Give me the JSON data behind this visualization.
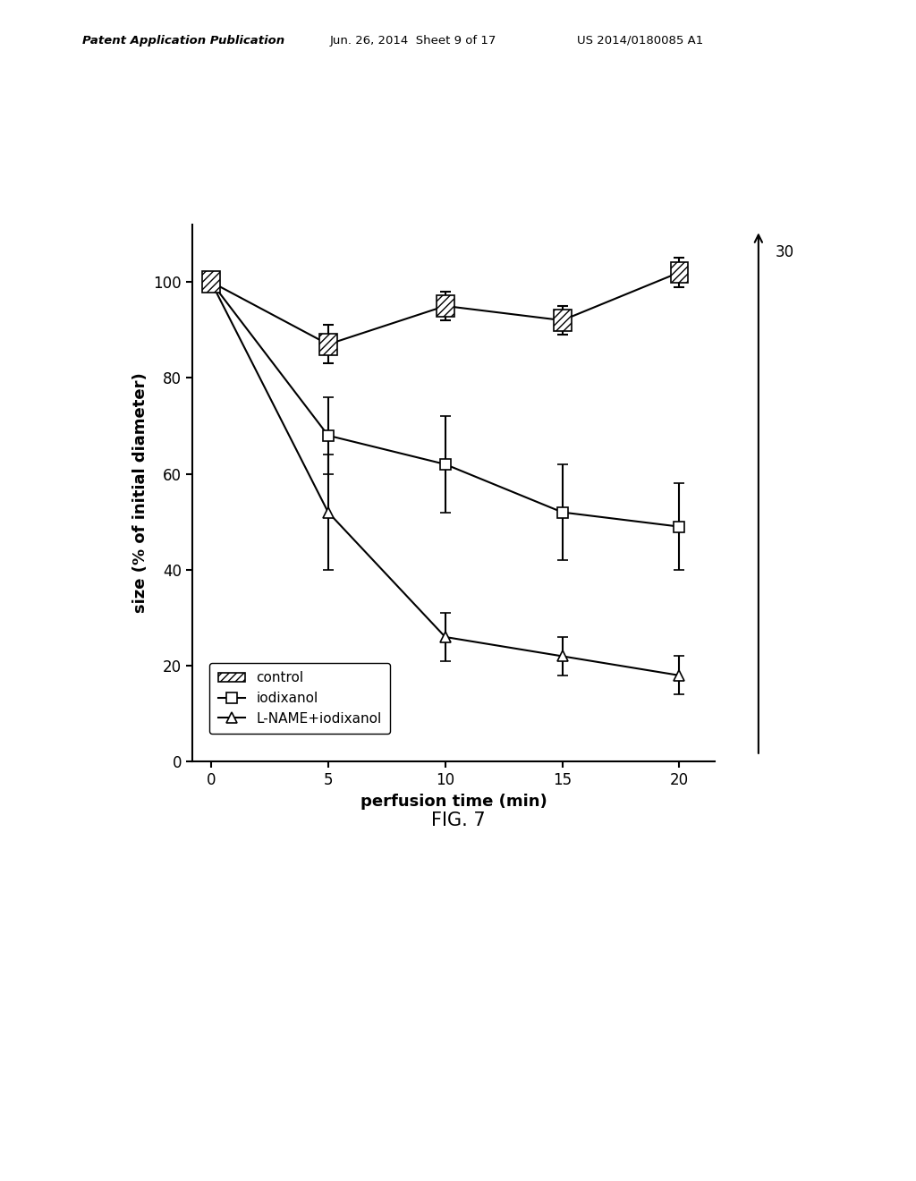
{
  "x": [
    0,
    5,
    10,
    15,
    20
  ],
  "control_y": [
    100,
    87,
    95,
    92,
    102
  ],
  "control_yerr": [
    1,
    4,
    3,
    3,
    3
  ],
  "iodixanol_y": [
    100,
    68,
    62,
    52,
    49
  ],
  "iodixanol_yerr": [
    1,
    8,
    10,
    10,
    9
  ],
  "lname_y": [
    100,
    52,
    26,
    22,
    18
  ],
  "lname_yerr": [
    1,
    12,
    5,
    4,
    4
  ],
  "xlabel": "perfusion time (min)",
  "ylabel": "size (% of initial diameter)",
  "legend_labels": [
    "control",
    "iodixanol",
    "L-NAME+iodixanol"
  ],
  "arrow_label": "30",
  "fig_label": "FIG. 7",
  "header_left": "Patent Application Publication",
  "header_mid": "Jun. 26, 2014  Sheet 9 of 17",
  "header_right": "US 2014/0180085 A1",
  "xlim": [
    -0.8,
    21.5
  ],
  "ylim": [
    0,
    112
  ],
  "xticks": [
    0,
    5,
    10,
    15,
    20
  ],
  "yticks": [
    0,
    20,
    40,
    60,
    80,
    100
  ],
  "background_color": "#ffffff",
  "line_color": "#000000"
}
